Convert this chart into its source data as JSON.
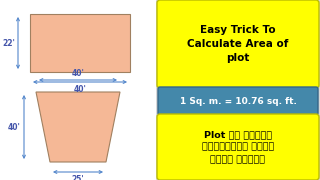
{
  "bg_color": "#d8d8d8",
  "left_bg": "#ffffff",
  "shape_fill": "#f5b896",
  "shape_edge": "#a08060",
  "arrow_color": "#5588cc",
  "dim_text_color": "#4455aa",
  "title_box_color": "#ffff00",
  "sq_box_color": "#4488aa",
  "hindi_box_color": "#ffff00",
  "title_text": "Easy Trick To\nCalculate Area of\nplot",
  "sq_text": "1 Sq. m. = 10.76 sq. ft.",
  "hindi_text": "Plot का एरिया\nनिकलनेका सबसे\nआसान तरीका",
  "dim_22": "22'",
  "dim_40_top": "40'",
  "dim_40_mid": "40'",
  "dim_40_left": "40'",
  "dim_25": "25'"
}
